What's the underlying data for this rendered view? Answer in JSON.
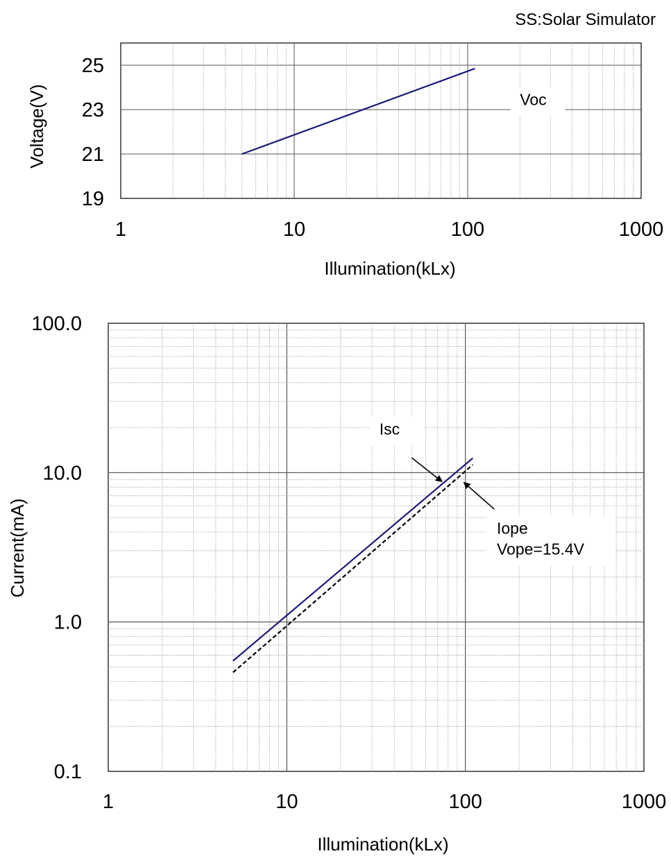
{
  "note": "SS:Solar Simulator",
  "chart_data": [
    {
      "type": "line",
      "x_scale": "log",
      "xlim": [
        1,
        1000
      ],
      "ylim": [
        19,
        26
      ],
      "xticks": [
        1,
        10,
        100,
        1000
      ],
      "xtick_labels": [
        "1",
        "10",
        "100",
        "1000"
      ],
      "yticks": [
        19,
        21,
        23,
        25
      ],
      "ytick_labels": [
        "19",
        "21",
        "23",
        "25"
      ],
      "xlabel": "Illumination(kLx)",
      "ylabel": "Voltage(V)",
      "grid": true,
      "series": [
        {
          "name": "Voc",
          "style": "solid",
          "color": "#1a1a7a",
          "x": [
            5,
            110
          ],
          "y": [
            21.0,
            24.85
          ]
        }
      ],
      "annotations": [
        {
          "text": "Voc",
          "x": 200,
          "y": 23.2
        }
      ]
    },
    {
      "type": "line",
      "x_scale": "log",
      "y_scale": "log",
      "xlim": [
        1,
        1000
      ],
      "ylim": [
        0.1,
        100
      ],
      "xticks": [
        1,
        10,
        100,
        1000
      ],
      "xtick_labels": [
        "1",
        "10",
        "100",
        "1000"
      ],
      "yticks": [
        0.1,
        1,
        10,
        100
      ],
      "ytick_labels": [
        "0.1",
        "1.0",
        "10.0",
        "100.0"
      ],
      "xlabel": "Illumination(kLx)",
      "ylabel": "Current(mA)",
      "grid": true,
      "series": [
        {
          "name": "Isc",
          "style": "solid",
          "color": "#1a1a7a",
          "x": [
            5,
            110
          ],
          "y": [
            0.55,
            12.5
          ]
        },
        {
          "name": "Iope",
          "style": "dashed",
          "color": "#000000",
          "x": [
            5,
            110
          ],
          "y": [
            0.46,
            11.3
          ]
        }
      ],
      "annotations": [
        {
          "lines": [
            "Isc"
          ],
          "x": 33,
          "y": 18
        },
        {
          "lines": [
            "Iope",
            "Vope=15.4V"
          ],
          "x": 150,
          "y": 3.9
        }
      ]
    }
  ]
}
